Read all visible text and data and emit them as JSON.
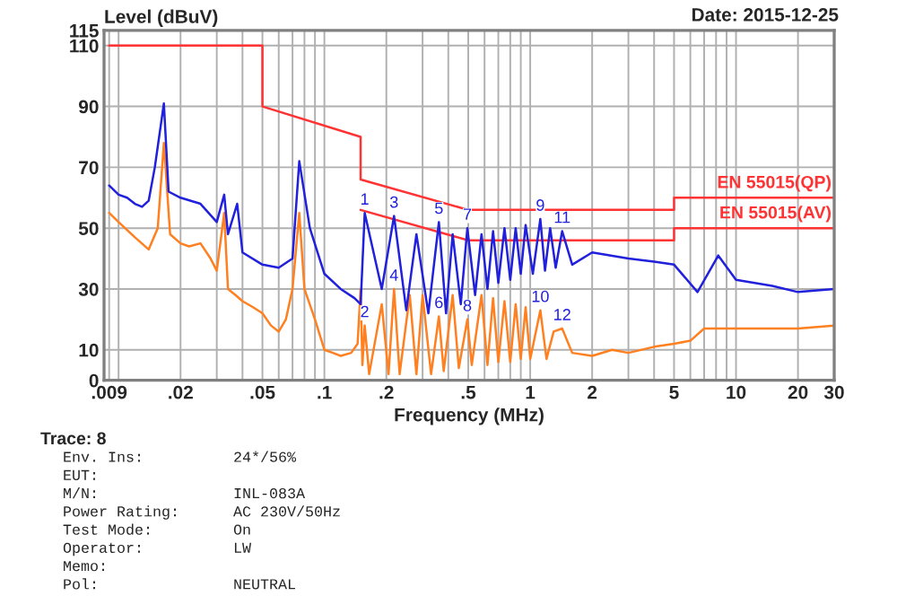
{
  "chart_data": {
    "type": "line",
    "xlabel": "Frequency (MHz)",
    "ylabel": "Level (dBuV)",
    "log": "x",
    "grid": true,
    "legend": false,
    "xlim": [
      0.0085,
      30
    ],
    "ylim": [
      0,
      115
    ],
    "xticks": [
      {
        "value": 0.009,
        "label": ".009"
      },
      {
        "value": 0.01,
        "label": null
      },
      {
        "value": 0.02,
        "label": ".02"
      },
      {
        "value": 0.03,
        "label": null
      },
      {
        "value": 0.04,
        "label": null
      },
      {
        "value": 0.05,
        "label": ".05"
      },
      {
        "value": 0.06,
        "label": null
      },
      {
        "value": 0.07,
        "label": null
      },
      {
        "value": 0.08,
        "label": null
      },
      {
        "value": 0.09,
        "label": null
      },
      {
        "value": 0.1,
        "label": ".1"
      },
      {
        "value": 0.2,
        "label": ".2"
      },
      {
        "value": 0.3,
        "label": null
      },
      {
        "value": 0.4,
        "label": null
      },
      {
        "value": 0.5,
        "label": ".5"
      },
      {
        "value": 0.6,
        "label": null
      },
      {
        "value": 0.7,
        "label": null
      },
      {
        "value": 0.8,
        "label": null
      },
      {
        "value": 0.9,
        "label": null
      },
      1,
      2,
      {
        "value": 3,
        "label": null
      },
      {
        "value": 4,
        "label": null
      },
      5,
      {
        "value": 6,
        "label": null
      },
      {
        "value": 7,
        "label": null
      },
      {
        "value": 8,
        "label": null
      },
      {
        "value": 9,
        "label": null
      },
      10,
      20,
      30
    ],
    "yticks": [
      0,
      10,
      30,
      50,
      70,
      90,
      110,
      115
    ],
    "series": [
      {
        "name": "EN 55015(QP)",
        "color": "#ff3333",
        "x": [
          0.009,
          0.05,
          0.05,
          0.15,
          0.15,
          0.5,
          5,
          5,
          30
        ],
        "values": [
          110,
          110,
          90,
          80,
          66,
          56,
          56,
          60,
          60
        ]
      },
      {
        "name": "EN 55015(AV)",
        "color": "#ff3333",
        "x": [
          0.15,
          0.5,
          5,
          5,
          30
        ],
        "values": [
          56,
          46,
          46,
          50,
          50
        ]
      },
      {
        "color": "#ff8020",
        "x": [
          0.009,
          0.01,
          0.012,
          0.014,
          0.0155,
          0.0166,
          0.0178,
          0.02,
          0.022,
          0.025,
          0.028,
          0.03,
          0.0326,
          0.034,
          0.037,
          0.04,
          0.045,
          0.05,
          0.055,
          0.06,
          0.065,
          0.07,
          0.0755,
          0.08,
          0.09,
          0.1,
          0.11,
          0.12,
          0.135,
          0.145,
          0.15,
          0.153,
          0.157,
          0.165,
          0.19,
          0.205,
          0.218,
          0.232,
          0.26,
          0.28,
          0.3,
          0.33,
          0.36,
          0.38,
          0.42,
          0.45,
          0.495,
          0.52,
          0.58,
          0.62,
          0.66,
          0.7,
          0.75,
          0.8,
          0.85,
          0.9,
          0.95,
          1.0,
          1.12,
          1.2,
          1.3,
          1.43,
          1.6,
          2,
          2.5,
          3,
          4,
          5,
          6,
          7,
          8,
          10,
          15,
          20,
          30
        ],
        "values": [
          55,
          52,
          47,
          43,
          50,
          78,
          48,
          45,
          44,
          45,
          40,
          36,
          55,
          30,
          28,
          26,
          24,
          22,
          18,
          16,
          20,
          30,
          55,
          30,
          20,
          10,
          9,
          8,
          9,
          12,
          30,
          5,
          18,
          2,
          25,
          2,
          30,
          2,
          28,
          2,
          28,
          2,
          21,
          3,
          28,
          4,
          20,
          5,
          28,
          5,
          27,
          6,
          26,
          6,
          25,
          7,
          24,
          7,
          23,
          7,
          16,
          17,
          9,
          8,
          10,
          9,
          11,
          12,
          13,
          17,
          17,
          17,
          17,
          17,
          18
        ]
      },
      {
        "color": "#2020dd",
        "x": [
          0.009,
          0.01,
          0.011,
          0.012,
          0.013,
          0.014,
          0.015,
          0.0166,
          0.0175,
          0.02,
          0.025,
          0.03,
          0.0326,
          0.034,
          0.0377,
          0.04,
          0.05,
          0.06,
          0.07,
          0.0755,
          0.085,
          0.1,
          0.12,
          0.14,
          0.15,
          0.157,
          0.19,
          0.218,
          0.25,
          0.28,
          0.32,
          0.36,
          0.39,
          0.42,
          0.46,
          0.495,
          0.54,
          0.58,
          0.62,
          0.66,
          0.7,
          0.75,
          0.8,
          0.85,
          0.9,
          0.95,
          1.03,
          1.12,
          1.18,
          1.25,
          1.33,
          1.43,
          1.6,
          2,
          3,
          4,
          5,
          6.5,
          8.2,
          10,
          15,
          20,
          30
        ],
        "values": [
          64,
          61,
          60,
          58,
          57,
          59,
          70,
          91,
          62,
          60,
          58,
          52,
          61,
          48,
          58,
          42,
          38,
          37,
          40,
          72,
          50,
          35,
          30,
          27,
          25,
          55,
          30,
          54,
          23,
          48,
          22,
          52,
          22,
          48,
          25,
          50,
          28,
          48,
          30,
          49,
          32,
          50,
          33,
          50,
          35,
          51,
          35,
          53,
          36,
          50,
          37,
          49,
          38,
          42,
          40,
          39,
          38,
          29,
          41,
          33,
          31,
          29,
          30
        ]
      }
    ],
    "annotations": [
      "Date: 2015-12-25",
      "Trace: 8",
      "Env. Ins:          24*/56%",
      "EUT:",
      "M/N:               INL-083A",
      "Power Rating:      AC 230V/50Hz",
      "Test Mode:         On",
      "Operator:          LW",
      "Memo:",
      "Pol:               NEUTRAL",
      {
        "text": "1",
        "x": 0.157,
        "y": 55
      },
      {
        "text": "2",
        "x": 0.157,
        "y": 18
      },
      {
        "text": "3",
        "x": 0.218,
        "y": 54
      },
      {
        "text": "4",
        "x": 0.218,
        "y": 30
      },
      {
        "text": "5",
        "x": 0.36,
        "y": 52
      },
      {
        "text": "6",
        "x": 0.36,
        "y": 21
      },
      {
        "text": "7",
        "x": 0.495,
        "y": 50
      },
      {
        "text": "8",
        "x": 0.495,
        "y": 20
      },
      {
        "text": "9",
        "x": 1.12,
        "y": 53
      },
      {
        "text": "10",
        "x": 1.12,
        "y": 23
      },
      {
        "text": "11",
        "x": 1.43,
        "y": 49
      },
      {
        "text": "12",
        "x": 1.43,
        "y": 17
      }
    ]
  }
}
